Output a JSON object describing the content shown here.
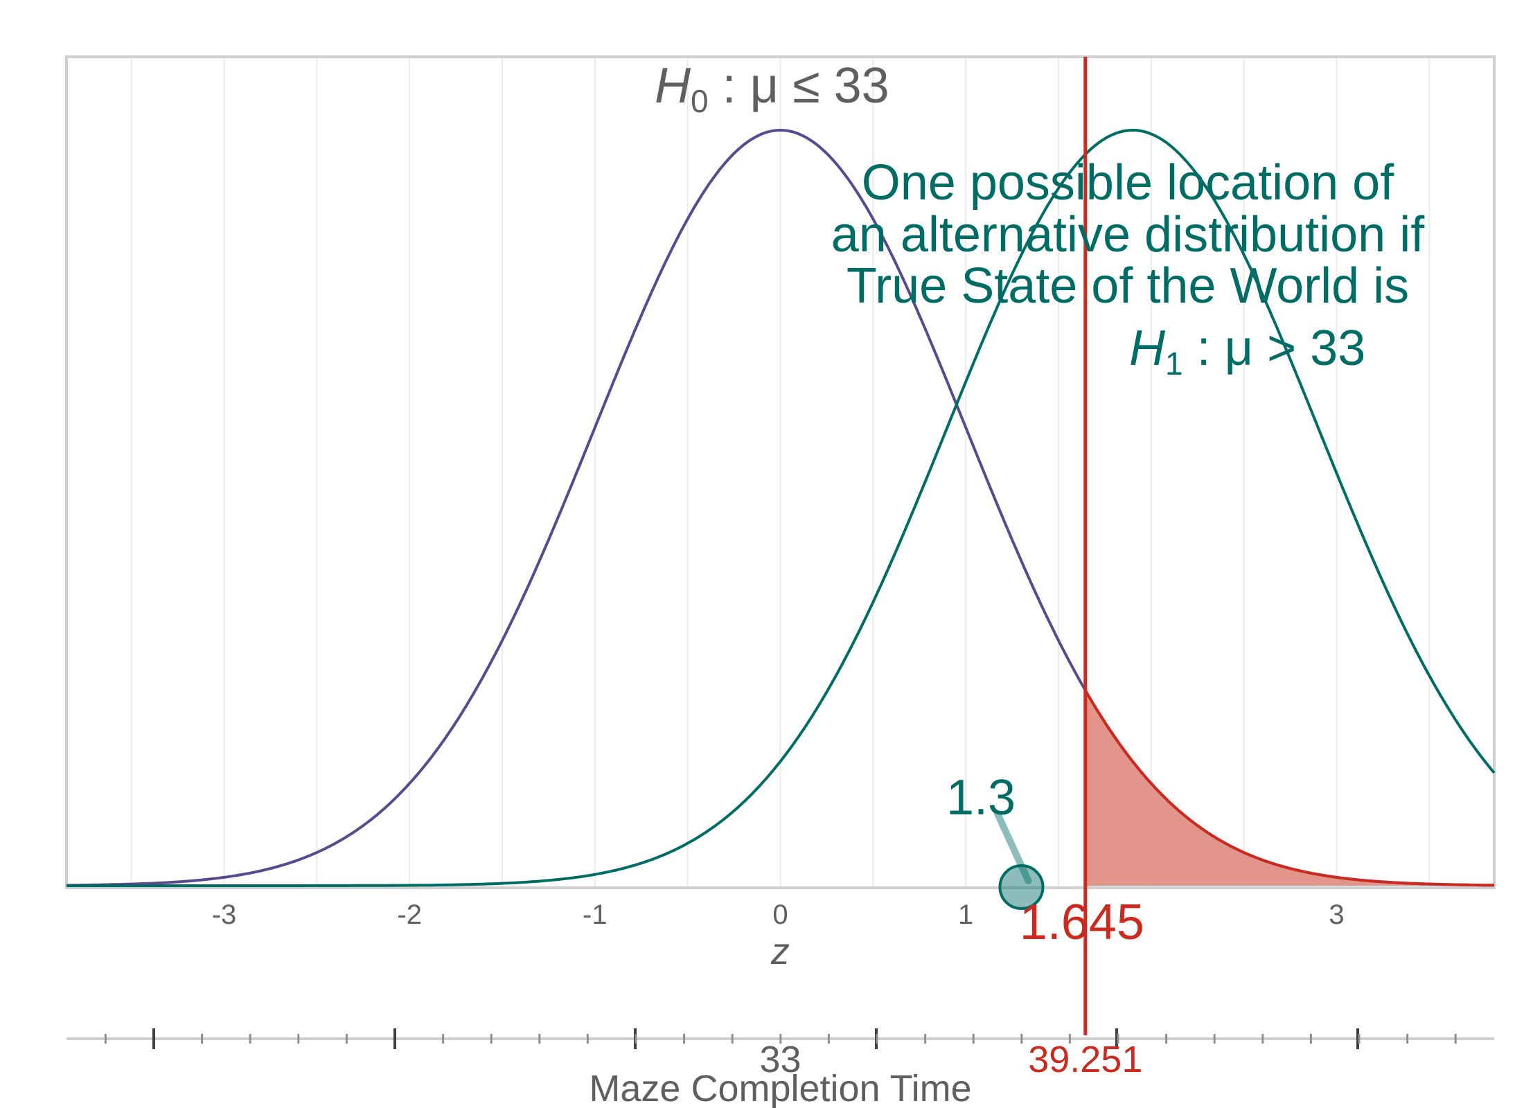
{
  "chart_data": {
    "type": "line",
    "xlabel": "z",
    "xlim": [
      -3.85,
      3.85
    ],
    "x_ticks": [
      {
        "value": -3,
        "label": "-3"
      },
      {
        "value": -2,
        "label": "-2"
      },
      {
        "value": -1,
        "label": "-1"
      },
      {
        "value": 0,
        "label": "0"
      },
      {
        "value": 1,
        "label": "1"
      },
      {
        "value": 3,
        "label": "3"
      }
    ],
    "grid": true,
    "series": [
      {
        "mean": 0,
        "sd": 1,
        "color": "#574a8f"
      },
      {
        "mean": 1.9,
        "sd": 1,
        "color": "#006c66"
      }
    ],
    "rejection_region": {
      "from": 1.645,
      "color": "#e3948b"
    },
    "critical_value": {
      "z": 1.645,
      "label": "1.645",
      "raw_label": "39.251",
      "color": "#cc2a1f"
    },
    "observed": {
      "z": 1.3,
      "label": "1.3",
      "color": "#006c66"
    },
    "h0_label": {
      "H": "H",
      "sub": "0",
      "expr": " : μ ≤ 33"
    },
    "alt_label": {
      "lines": [
        "One possible location of",
        "an alternative distribution if",
        "True State of the World is"
      ],
      "H": "H",
      "sub": "1",
      "expr": " : μ > 33"
    },
    "raw_axis": {
      "title": "Maze Completion Time",
      "labels": [
        {
          "z": 0,
          "label": "33"
        }
      ]
    }
  }
}
